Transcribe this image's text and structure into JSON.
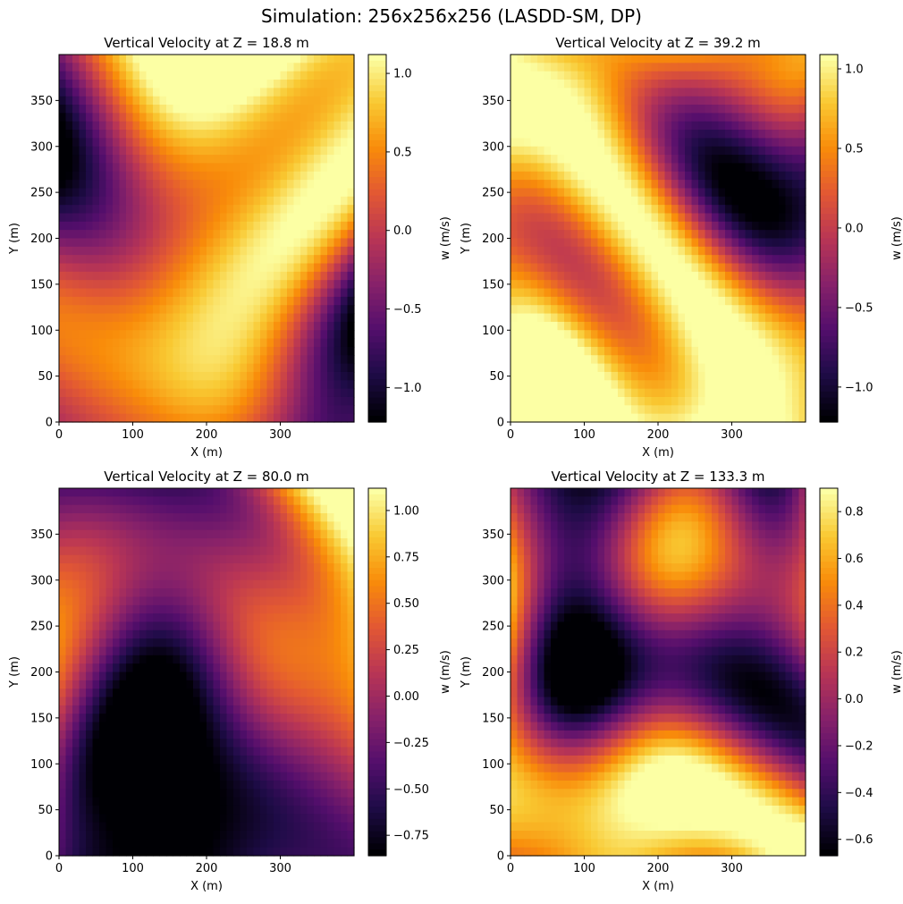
{
  "figure": {
    "title": "Simulation: 256x256x256 (LASDD-SM, DP)"
  },
  "chart_data": [
    {
      "type": "heatmap",
      "title": "Vertical Velocity at Z = 18.8 m",
      "xlabel": "X (m)",
      "ylabel": "Y (m)",
      "xlim": [
        0,
        400
      ],
      "ylim": [
        0,
        400
      ],
      "xticks": [
        0,
        100,
        200,
        300
      ],
      "yticks": [
        0,
        50,
        100,
        150,
        200,
        250,
        300,
        350
      ],
      "colormap": "inferno",
      "colorbar": {
        "label": "w (m/s)",
        "range": [
          -1.22,
          1.12
        ],
        "ticks": [
          1.0,
          0.5,
          0.0,
          -0.5,
          -1.0
        ],
        "tick_labels": [
          "1.0",
          "0.5",
          "0.0",
          "−0.5",
          "−1.0"
        ]
      },
      "field_character": {
        "mean": 0.0,
        "positive_bias": true
      }
    },
    {
      "type": "heatmap",
      "title": "Vertical Velocity at Z = 39.2 m",
      "xlabel": "X (m)",
      "ylabel": "Y (m)",
      "xlim": [
        0,
        400
      ],
      "ylim": [
        0,
        400
      ],
      "xticks": [
        0,
        100,
        200,
        300
      ],
      "yticks": [
        0,
        50,
        100,
        150,
        200,
        250,
        300,
        350
      ],
      "colormap": "inferno",
      "colorbar": {
        "label": "w (m/s)",
        "range": [
          -1.22,
          1.09
        ],
        "ticks": [
          1.0,
          0.5,
          0.0,
          -0.5,
          -1.0
        ],
        "tick_labels": [
          "1.0",
          "0.5",
          "0.0",
          "−0.5",
          "−1.0"
        ]
      },
      "field_character": {
        "mean": 0.0,
        "positive_bias": true
      }
    },
    {
      "type": "heatmap",
      "title": "Vertical Velocity at Z = 80.0 m",
      "xlabel": "X (m)",
      "ylabel": "Y (m)",
      "xlim": [
        0,
        400
      ],
      "ylim": [
        0,
        400
      ],
      "xticks": [
        0,
        100,
        200,
        300
      ],
      "yticks": [
        0,
        50,
        100,
        150,
        200,
        250,
        300,
        350
      ],
      "colormap": "inferno",
      "colorbar": {
        "label": "w (m/s)",
        "range": [
          -0.86,
          1.12
        ],
        "ticks": [
          1.0,
          0.75,
          0.5,
          0.25,
          0.0,
          -0.25,
          -0.5,
          -0.75
        ],
        "tick_labels": [
          "1.00",
          "0.75",
          "0.50",
          "0.25",
          "0.00",
          "−0.25",
          "−0.50",
          "−0.75"
        ]
      },
      "field_character": {
        "mean": 0.0,
        "positive_bias": false
      }
    },
    {
      "type": "heatmap",
      "title": "Vertical Velocity at Z = 133.3 m",
      "xlabel": "X (m)",
      "ylabel": "Y (m)",
      "xlim": [
        0,
        400
      ],
      "ylim": [
        0,
        400
      ],
      "xticks": [
        0,
        100,
        200,
        300
      ],
      "yticks": [
        0,
        50,
        100,
        150,
        200,
        250,
        300,
        350
      ],
      "colormap": "inferno",
      "colorbar": {
        "label": "w (m/s)",
        "range": [
          -0.67,
          0.9
        ],
        "ticks": [
          0.8,
          0.6,
          0.4,
          0.2,
          0.0,
          -0.2,
          -0.4,
          -0.6
        ],
        "tick_labels": [
          "0.8",
          "0.6",
          "0.4",
          "0.2",
          "0.0",
          "−0.2",
          "−0.4",
          "−0.6"
        ]
      },
      "field_character": {
        "mean": 0.0,
        "positive_bias": false
      }
    }
  ]
}
